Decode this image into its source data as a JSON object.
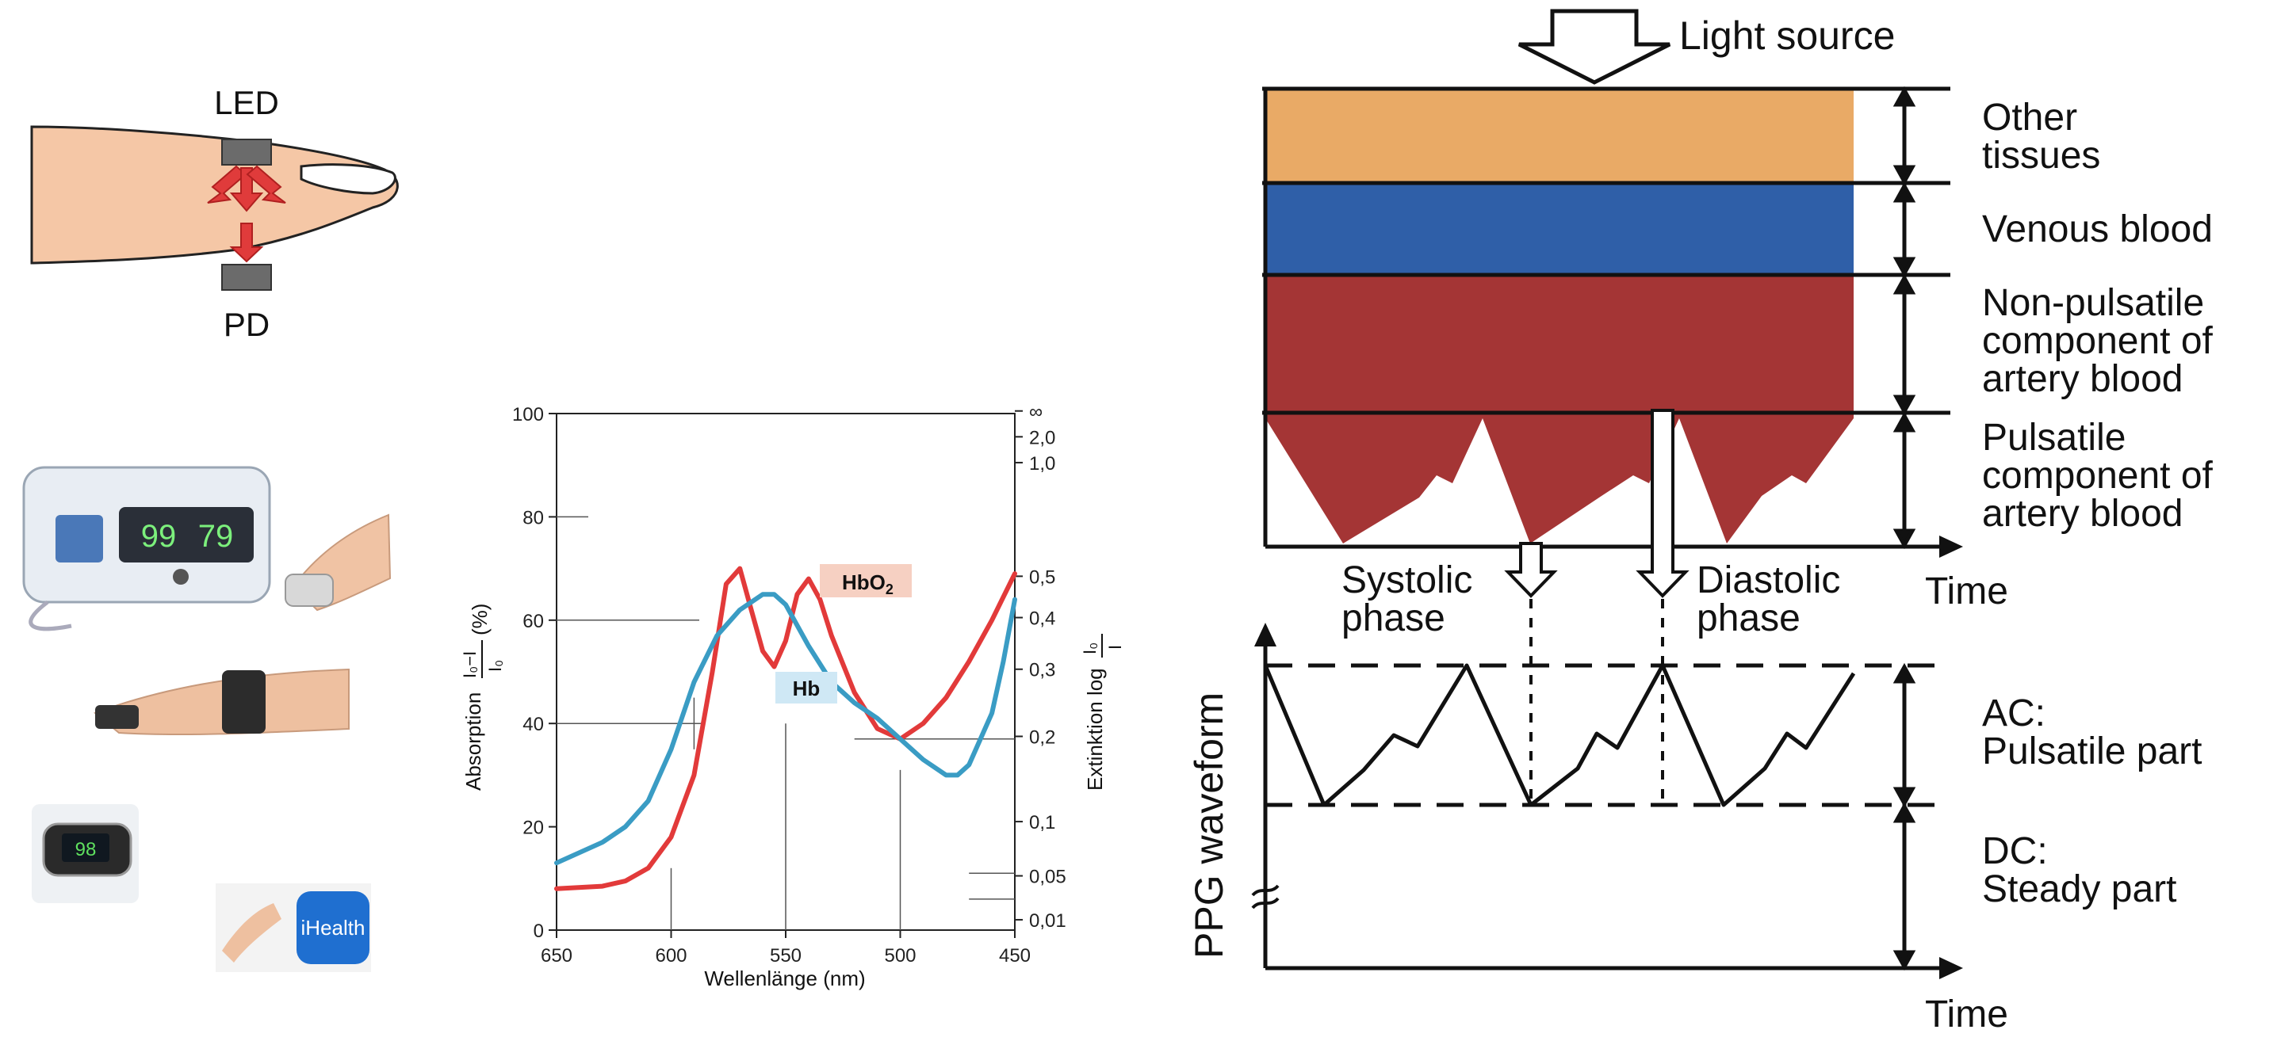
{
  "finger_sensor": {
    "led_label": "LED",
    "pd_label": "PD"
  },
  "devices": {
    "monitor_spo2": "99",
    "monitor_pulse": "79",
    "oximeter_reading": "98",
    "app_label": "iHealth"
  },
  "absorption_chart": {
    "y_label_left": "Absorption",
    "y_label_left_formula_num": "I₀−I",
    "y_label_left_formula_den": "I₀",
    "y_label_left_unit": "(%)",
    "y_label_right": "Extinktion log",
    "y_label_right_formula_num": "I₀",
    "y_label_right_formula_den": "I",
    "x_label": "Wellenlänge (nm)",
    "x_ticks": [
      "650",
      "600",
      "550",
      "500",
      "450"
    ],
    "y_ticks": [
      "0",
      "20",
      "40",
      "60",
      "80",
      "100"
    ],
    "right_ticks": [
      "∞",
      "2,0",
      "1,0",
      "0,5",
      "0,4",
      "0,3",
      "0,2",
      "0,1",
      "0,05",
      "0,01"
    ],
    "hbo2_label": "HbO",
    "hbo2_sub": "2",
    "hb_label": "Hb",
    "colors": {
      "hb": "#3a9cc4",
      "hbo2": "#e23a3a",
      "hbo2_tag": "#f6d0c2",
      "hb_tag": "#cfe8f5"
    }
  },
  "chart_data": {
    "type": "line",
    "xlabel": "Wellenlänge (nm)",
    "ylabel": "Absorption (I₀−I)/I₀ (%)",
    "xlim": [
      650,
      450
    ],
    "ylim": [
      0,
      100
    ],
    "series": [
      {
        "name": "HbO2",
        "x": [
          650,
          630,
          620,
          610,
          600,
          590,
          582,
          576,
          570,
          565,
          560,
          555,
          550,
          545,
          540,
          535,
          530,
          520,
          510,
          500,
          490,
          480,
          470,
          460,
          450
        ],
        "y": [
          8,
          8.5,
          9.5,
          12,
          18,
          30,
          50,
          67,
          70,
          62,
          54,
          51,
          56,
          65,
          68,
          64,
          57,
          46,
          39,
          37,
          40,
          45,
          52,
          60,
          69
        ]
      },
      {
        "name": "Hb",
        "x": [
          650,
          640,
          630,
          620,
          610,
          600,
          590,
          580,
          570,
          560,
          555,
          550,
          540,
          530,
          520,
          510,
          500,
          490,
          480,
          475,
          470,
          460,
          455,
          450
        ],
        "y": [
          13,
          15,
          17,
          20,
          25,
          35,
          48,
          57,
          62,
          65,
          65,
          63,
          55,
          48,
          44,
          41,
          37,
          33,
          30,
          30,
          32,
          42,
          52,
          64
        ]
      }
    ]
  },
  "ppg_diagram": {
    "light_source": "Light source",
    "layer_other": [
      "Other",
      "tissues"
    ],
    "layer_venous": "Venous blood",
    "layer_nonpulsatile": [
      "Non-pulsatile",
      "component of",
      "artery blood"
    ],
    "layer_pulsatile": [
      "Pulsatile",
      "component of",
      "artery blood"
    ],
    "systolic": [
      "Systolic",
      "phase"
    ],
    "diastolic": [
      "Diastolic",
      "phase"
    ],
    "time_top": "Time",
    "time_bottom": "Time",
    "y_axis": "PPG waveform",
    "ac": [
      "AC:",
      "Pulsatile part"
    ],
    "dc": [
      "DC:",
      "Steady part"
    ],
    "colors": {
      "other": "#e9aa66",
      "venous": "#2f5fa8",
      "artery": "#a43535"
    }
  }
}
